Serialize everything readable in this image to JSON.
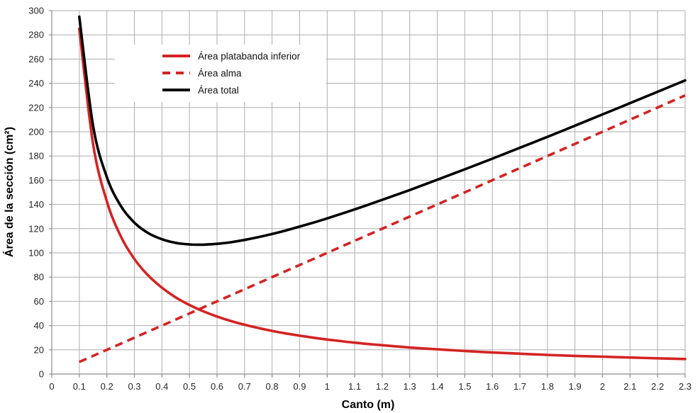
{
  "chart_data": {
    "type": "line",
    "title": "",
    "xlabel": "Canto (m)",
    "ylabel": "Área de la sección (cm²)",
    "xlim": [
      0,
      2.3
    ],
    "ylim": [
      0,
      300
    ],
    "grid": "both",
    "legend_position": "top-left-inside",
    "x_ticks": [
      0,
      0.1,
      0.2,
      0.3,
      0.4,
      0.5,
      0.6,
      0.7,
      0.8,
      0.9,
      1,
      1.1,
      1.2,
      1.3,
      1.4,
      1.5,
      1.6,
      1.7,
      1.8,
      1.9,
      2,
      2.1,
      2.2,
      2.3
    ],
    "x_tick_labels": [
      "0",
      "0.1",
      "0.2",
      "0.3",
      "0.4",
      "0.5",
      "0.6",
      "0.7",
      "0.8",
      "0.9",
      "1",
      "1.1",
      "1.2",
      "1.3",
      "1.4",
      "1.5",
      "1.6",
      "1.7",
      "1.8",
      "1.9",
      "2",
      "2.1",
      "2.2",
      "2.3"
    ],
    "y_ticks": [
      0,
      20,
      40,
      60,
      80,
      100,
      120,
      140,
      160,
      180,
      200,
      220,
      240,
      260,
      280,
      300
    ],
    "y_tick_labels": [
      "0",
      "20",
      "40",
      "60",
      "80",
      "100",
      "120",
      "140",
      "160",
      "180",
      "200",
      "220",
      "240",
      "260",
      "280",
      "300"
    ],
    "x": [
      0.1,
      0.15,
      0.2,
      0.25,
      0.3,
      0.35,
      0.4,
      0.45,
      0.5,
      0.55,
      0.6,
      0.65,
      0.7,
      0.75,
      0.8,
      0.85,
      0.9,
      0.95,
      1.0,
      1.1,
      1.2,
      1.3,
      1.4,
      1.5,
      1.6,
      1.7,
      1.8,
      1.9,
      2.0,
      2.1,
      2.2,
      2.3
    ],
    "series": [
      {
        "name": "Área platabanda inferior",
        "color": "#d42323",
        "style": "solid",
        "values": [
          285,
          190,
          142.5,
          114,
          95,
          81.4,
          71.3,
          63.3,
          57,
          51.8,
          47.5,
          43.8,
          40.7,
          38,
          35.6,
          33.5,
          31.7,
          30,
          28.5,
          25.9,
          23.8,
          21.9,
          20.4,
          19,
          17.8,
          16.8,
          15.8,
          15,
          14.3,
          13.6,
          13,
          12.4
        ]
      },
      {
        "name": "Área alma",
        "color": "#d42323",
        "style": "dashed",
        "values": [
          10,
          15,
          20,
          25,
          30,
          35,
          40,
          45,
          50,
          55,
          60,
          65,
          70,
          75,
          80,
          85,
          90,
          95,
          100,
          110,
          120,
          130,
          140,
          150,
          160,
          170,
          180,
          190,
          200,
          210,
          220,
          230
        ]
      },
      {
        "name": "Área total",
        "color": "#000000",
        "style": "solid",
        "values": [
          295,
          205,
          162.5,
          139,
          125,
          116.4,
          111.3,
          108.3,
          107,
          106.8,
          107.5,
          108.8,
          110.7,
          113,
          115.6,
          118.5,
          121.7,
          125,
          128.5,
          135.9,
          143.8,
          151.9,
          160.4,
          169,
          177.8,
          186.8,
          195.8,
          205,
          214.3,
          223.6,
          233,
          242.4
        ]
      }
    ]
  },
  "colors": {
    "red": "#d42323",
    "black": "#000000",
    "grid": "#aeaeae",
    "axis": "#8c8c8c",
    "tick_label": "#262626",
    "background": "#ffffff"
  }
}
